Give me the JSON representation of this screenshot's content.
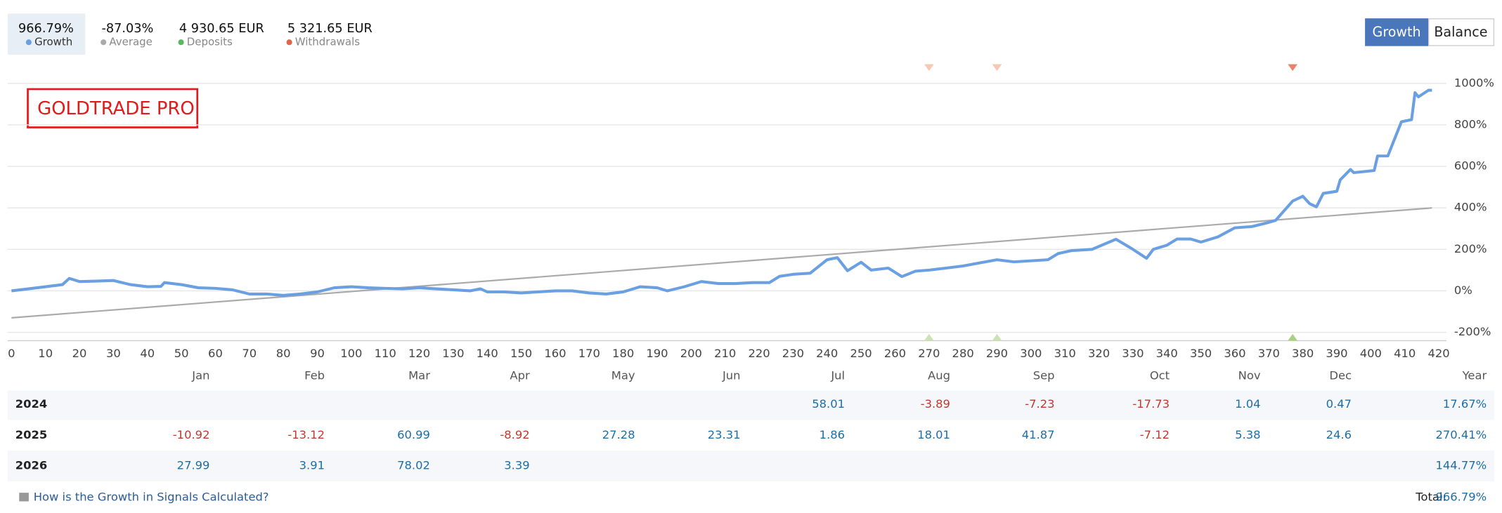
{
  "stats": [
    {
      "value": "966.79%",
      "label": "Growth"
    },
    {
      "value": "-87.03%",
      "label": "Average"
    },
    {
      "value": "4 930.65 EUR",
      "label": "Deposits"
    },
    {
      "value": "5 321.65 EUR",
      "label": "Withdrawals"
    }
  ],
  "buttons": [
    "Growth",
    "Balance"
  ],
  "badge": "GOLDTRADE PRO",
  "chart_data": {
    "type": "line",
    "xlim": [
      0,
      420
    ],
    "ylim": [
      -240,
      1040
    ],
    "xticks": [
      0,
      10,
      20,
      30,
      40,
      50,
      60,
      70,
      80,
      90,
      100,
      110,
      120,
      130,
      140,
      150,
      160,
      170,
      180,
      190,
      200,
      210,
      220,
      230,
      240,
      250,
      260,
      270,
      280,
      290,
      300,
      310,
      320,
      330,
      340,
      350,
      360,
      370,
      380,
      390,
      400,
      410,
      420
    ],
    "yticks": [
      {
        "value": 1000,
        "label": "1000%"
      },
      {
        "value": 800,
        "label": "800%"
      },
      {
        "value": 600,
        "label": "600%"
      },
      {
        "value": 400,
        "label": "400%"
      },
      {
        "value": 200,
        "label": "200%"
      },
      {
        "value": 0,
        "label": "0%"
      },
      {
        "value": -200,
        "label": "-200%"
      }
    ],
    "grid": true,
    "series": [
      {
        "color": "#6aa0e2",
        "x": [
          0,
          5,
          10,
          15,
          17,
          20,
          25,
          30,
          35,
          40,
          44,
          45,
          50,
          55,
          60,
          65,
          70,
          75,
          80,
          85,
          90,
          95,
          100,
          105,
          110,
          115,
          120,
          125,
          130,
          135,
          138,
          140,
          145,
          150,
          155,
          160,
          165,
          170,
          175,
          180,
          185,
          190,
          193,
          198,
          203,
          208,
          213,
          218,
          223,
          226,
          230,
          235,
          240,
          243,
          246,
          250,
          253,
          258,
          262,
          266,
          270,
          275,
          280,
          285,
          290,
          295,
          300,
          305,
          308,
          312,
          318,
          325,
          330,
          334,
          336,
          340,
          343,
          347,
          350,
          355,
          360,
          365,
          370,
          372,
          377,
          380,
          382,
          384,
          386,
          390,
          391,
          394,
          395,
          401,
          402,
          405,
          409,
          412,
          413,
          414,
          417,
          418
        ],
        "values": [
          0,
          10,
          20,
          30,
          60,
          45,
          47,
          50,
          30,
          20,
          22,
          40,
          30,
          15,
          12,
          5,
          -15,
          -15,
          -22,
          -15,
          -5,
          15,
          20,
          15,
          12,
          10,
          15,
          10,
          5,
          0,
          10,
          -5,
          -5,
          -10,
          -5,
          0,
          0,
          -10,
          -15,
          -5,
          20,
          15,
          0,
          20,
          45,
          35,
          35,
          40,
          40,
          70,
          80,
          85,
          150,
          160,
          97,
          138,
          100,
          110,
          69,
          95,
          100,
          110,
          120,
          135,
          150,
          140,
          145,
          150,
          180,
          194,
          200,
          249,
          200,
          157,
          200,
          220,
          250,
          250,
          235,
          260,
          304,
          310,
          330,
          340,
          433,
          456,
          420,
          405,
          470,
          480,
          535,
          585,
          570,
          580,
          650,
          650,
          815,
          825,
          955,
          935,
          967,
          966.79
        ]
      },
      {
        "color": "#aaaaaa",
        "x": [
          0,
          418
        ],
        "values": [
          -130,
          400
        ]
      }
    ],
    "withdrawal_x": [
      270,
      290,
      377
    ],
    "deposit_x": [
      270,
      290,
      377
    ]
  },
  "table": {
    "header": [
      "Jan",
      "Feb",
      "Mar",
      "Apr",
      "May",
      "Jun",
      "Jul",
      "Aug",
      "Sep",
      "Oct",
      "Nov",
      "Dec",
      "Year"
    ],
    "rows": [
      {
        "year": "2024",
        "cells": [
          null,
          null,
          null,
          null,
          null,
          null,
          "58.01",
          "-3.89",
          "-7.23",
          "-17.73",
          "1.04",
          "0.47"
        ],
        "total": "17.67%"
      },
      {
        "year": "2025",
        "cells": [
          "-10.92",
          "-13.12",
          "60.99",
          "-8.92",
          "27.28",
          "23.31",
          "1.86",
          "18.01",
          "41.87",
          "-7.12",
          "5.38",
          "24.6"
        ],
        "total": "270.41%"
      },
      {
        "year": "2026",
        "cells": [
          "27.99",
          "3.91",
          "78.02",
          "3.39",
          null,
          null,
          null,
          null,
          null,
          null,
          null,
          null
        ],
        "total": "144.77%"
      }
    ]
  },
  "footer": {
    "link": "How is the Growth in Signals Calculated?",
    "total_label": "Total:",
    "total": "966.79%"
  }
}
